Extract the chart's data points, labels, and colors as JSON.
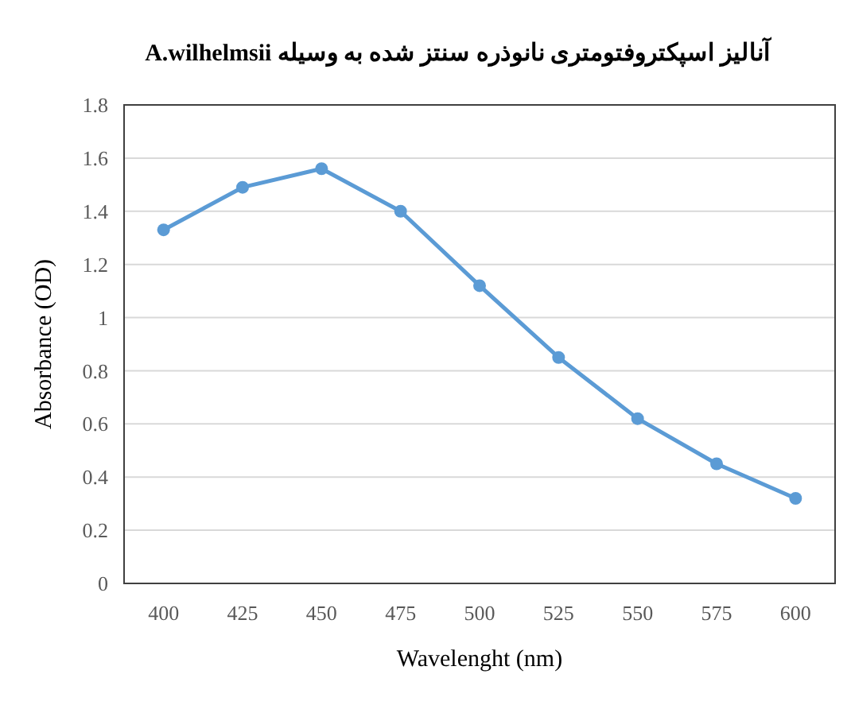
{
  "chart_data": {
    "type": "line",
    "title": "آنالیز اسپکتروفتومتری نانوذره سنتز شده به وسیله A.wilhelmsii",
    "xlabel": "Wavelenght (nm)",
    "ylabel": "Absorbance (OD)",
    "categories": [
      "400",
      "425",
      "450",
      "475",
      "500",
      "525",
      "550",
      "575",
      "600"
    ],
    "series": [
      {
        "color": "#5b9bd5",
        "values": [
          1.33,
          1.49,
          1.56,
          1.4,
          1.12,
          0.85,
          0.62,
          0.45,
          0.32
        ]
      }
    ],
    "ylim": [
      0,
      1.8
    ],
    "yticks": [
      0,
      0.2,
      0.4,
      0.6,
      0.8,
      1,
      1.2,
      1.4,
      1.6,
      1.8
    ],
    "grid": "y",
    "marker": "circle",
    "line_style": "solid"
  }
}
